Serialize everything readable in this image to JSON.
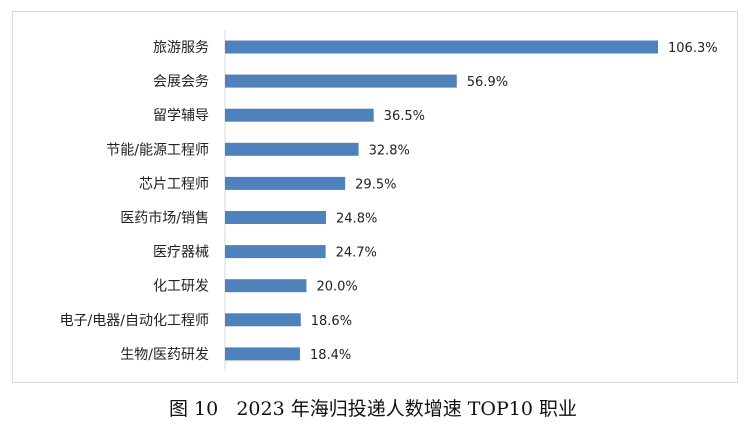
{
  "chart_data": {
    "type": "bar",
    "orientation": "horizontal",
    "categories": [
      "旅游服务",
      "会展会务",
      "留学辅导",
      "节能/能源工程师",
      "芯片工程师",
      "医药市场/销售",
      "医疗器械",
      "化工研发",
      "电子/电器/自动化工程师",
      "生物/医药研发"
    ],
    "values": [
      106.3,
      56.9,
      36.5,
      32.8,
      29.5,
      24.8,
      24.7,
      20.0,
      18.6,
      18.4
    ],
    "value_labels": [
      "106.3%",
      "56.9%",
      "36.5%",
      "32.8%",
      "29.5%",
      "24.8%",
      "24.7%",
      "20.0%",
      "18.6%",
      "18.4%"
    ],
    "unit": "%",
    "xlim": [
      0,
      106.3
    ],
    "grid": false,
    "bar_color": "#4f81bd"
  },
  "caption": "图 10   2023 年海归投递人数增速 TOP10 职业"
}
